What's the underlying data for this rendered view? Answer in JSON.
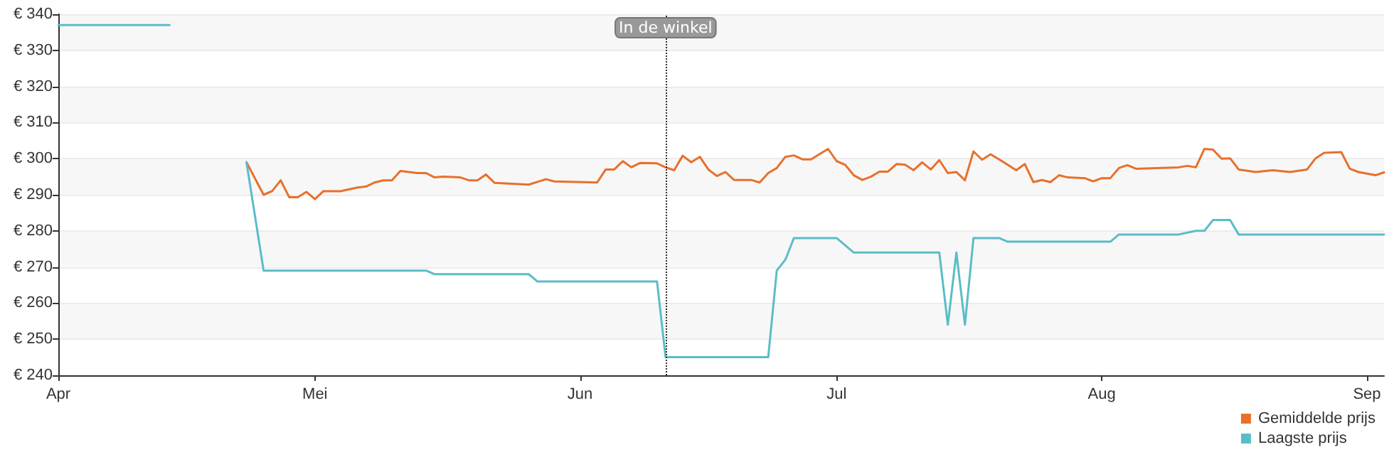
{
  "chart_data": {
    "type": "line",
    "xlim": [
      "--04-01",
      "--09-03"
    ],
    "xticks": [
      {
        "value": "--04-01",
        "label": "Apr"
      },
      {
        "value": "--05-01",
        "label": "Mei"
      },
      {
        "value": "--06-01",
        "label": "Jun"
      },
      {
        "value": "--07-01",
        "label": "Jul"
      },
      {
        "value": "--08-01",
        "label": "Aug"
      },
      {
        "value": "--09-01",
        "label": "Sep"
      }
    ],
    "ylim": [
      240,
      340
    ],
    "yticks": [
      {
        "value": 240,
        "label": "€ 240"
      },
      {
        "value": 250,
        "label": "€ 250"
      },
      {
        "value": 260,
        "label": "€ 260"
      },
      {
        "value": 270,
        "label": "€ 270"
      },
      {
        "value": 280,
        "label": "€ 280"
      },
      {
        "value": 290,
        "label": "€ 290"
      },
      {
        "value": 300,
        "label": "€ 300"
      },
      {
        "value": 310,
        "label": "€ 310"
      },
      {
        "value": 320,
        "label": "€ 320"
      },
      {
        "value": 330,
        "label": "€ 330"
      },
      {
        "value": 340,
        "label": "€ 340"
      }
    ],
    "grid": "y",
    "legend": "bottom right",
    "marker": "none",
    "line_style": "solid",
    "ref_lines": [
      {
        "axis": "x",
        "value": "--06-11",
        "label": "In de winkel",
        "line_style": "dotted",
        "color": "#333333"
      }
    ],
    "series": [
      {
        "name": "Gemiddelde prijs",
        "color": "#e8702a",
        "x": [
          "--04-23",
          "--04-25",
          "--04-26",
          "--04-27",
          "--04-28",
          "--04-29",
          "--04-30",
          "--05-01",
          "--05-02",
          "--05-03",
          "--05-04",
          "--05-06",
          "--05-07",
          "--05-08",
          "--05-09",
          "--05-10",
          "--05-11",
          "--05-13",
          "--05-14",
          "--05-15",
          "--05-16",
          "--05-18",
          "--05-19",
          "--05-20",
          "--05-21",
          "--05-22",
          "--05-26",
          "--05-28",
          "--05-29",
          "--06-03",
          "--06-04",
          "--06-05",
          "--06-06",
          "--06-07",
          "--06-08",
          "--06-10",
          "--06-11",
          "--06-12",
          "--06-13",
          "--06-14",
          "--06-15",
          "--06-16",
          "--06-17",
          "--06-18",
          "--06-19",
          "--06-21",
          "--06-22",
          "--06-23",
          "--06-24",
          "--06-25",
          "--06-26",
          "--06-27",
          "--06-28",
          "--06-30",
          "--07-01",
          "--07-02",
          "--07-03",
          "--07-04",
          "--07-05",
          "--07-06",
          "--07-07",
          "--07-08",
          "--07-09",
          "--07-10",
          "--07-11",
          "--07-12",
          "--07-13",
          "--07-14",
          "--07-15",
          "--07-16",
          "--07-17",
          "--07-18",
          "--07-19",
          "--07-20",
          "--07-22",
          "--07-23",
          "--07-24",
          "--07-25",
          "--07-26",
          "--07-27",
          "--07-28",
          "--07-30",
          "--07-31",
          "--08-01",
          "--08-02",
          "--08-03",
          "--08-04",
          "--08-05",
          "--08-10",
          "--08-11",
          "--08-12",
          "--08-13",
          "--08-14",
          "--08-15",
          "--08-16",
          "--08-17",
          "--08-19",
          "--08-21",
          "--08-23",
          "--08-25",
          "--08-26",
          "--08-27",
          "--08-29",
          "--08-30",
          "--08-31",
          "--09-02",
          "--09-03"
        ],
        "values": [
          299,
          290,
          291,
          294,
          289.3,
          289.3,
          290.8,
          288.8,
          291,
          291,
          291,
          292,
          292.3,
          293.4,
          294,
          294,
          296.6,
          296,
          296,
          294.8,
          295,
          294.8,
          294,
          294,
          295.6,
          293.3,
          292.8,
          294.3,
          293.7,
          293.4,
          297,
          297,
          299.3,
          297.6,
          298.8,
          298.7,
          297.6,
          296.8,
          300.8,
          299,
          300.5,
          297,
          295.2,
          296.3,
          294.1,
          294.1,
          293.4,
          296,
          297.4,
          300.5,
          300.9,
          299.8,
          299.8,
          302.7,
          299.3,
          298.3,
          295.4,
          294.1,
          295,
          296.4,
          296.4,
          298.5,
          298.3,
          296.8,
          299,
          297,
          299.6,
          296,
          296.3,
          294,
          302,
          299.7,
          301.2,
          299.8,
          296.8,
          298.5,
          293.5,
          294.1,
          293.5,
          295.4,
          294.8,
          294.6,
          293.7,
          294.6,
          294.6,
          297.4,
          298.2,
          297.2,
          297.6,
          298,
          297.6,
          302.7,
          302.5,
          300,
          300.1,
          297,
          296.3,
          296.8,
          296.3,
          297,
          300.1,
          301.6,
          301.8,
          297.2,
          296.3,
          295.4,
          296.2
        ]
      },
      {
        "name": "Laagste prijs",
        "color": "#5bbcc8",
        "x": [
          "--04-01",
          "--04-14",
          "--04-18",
          "--04-23",
          "--04-25",
          "--05-14",
          "--05-15",
          "--05-26",
          "--05-27",
          "--06-10",
          "--06-11",
          "--06-23",
          "--06-24",
          "--06-25",
          "--06-26",
          "--07-01",
          "--07-03",
          "--07-13",
          "--07-14",
          "--07-15",
          "--07-16",
          "--07-17",
          "--07-20",
          "--07-21",
          "--08-02",
          "--08-03",
          "--08-10",
          "--08-12",
          "--08-13",
          "--08-14",
          "--08-16",
          "--08-17",
          "--09-03"
        ],
        "values": [
          337,
          337,
          null,
          299,
          269,
          269,
          268,
          268,
          266,
          266,
          245,
          245,
          269,
          272,
          278,
          278,
          274,
          274,
          254,
          274,
          254,
          278,
          278,
          277,
          277,
          279,
          279,
          280,
          280,
          283,
          283,
          279,
          279
        ]
      }
    ]
  }
}
